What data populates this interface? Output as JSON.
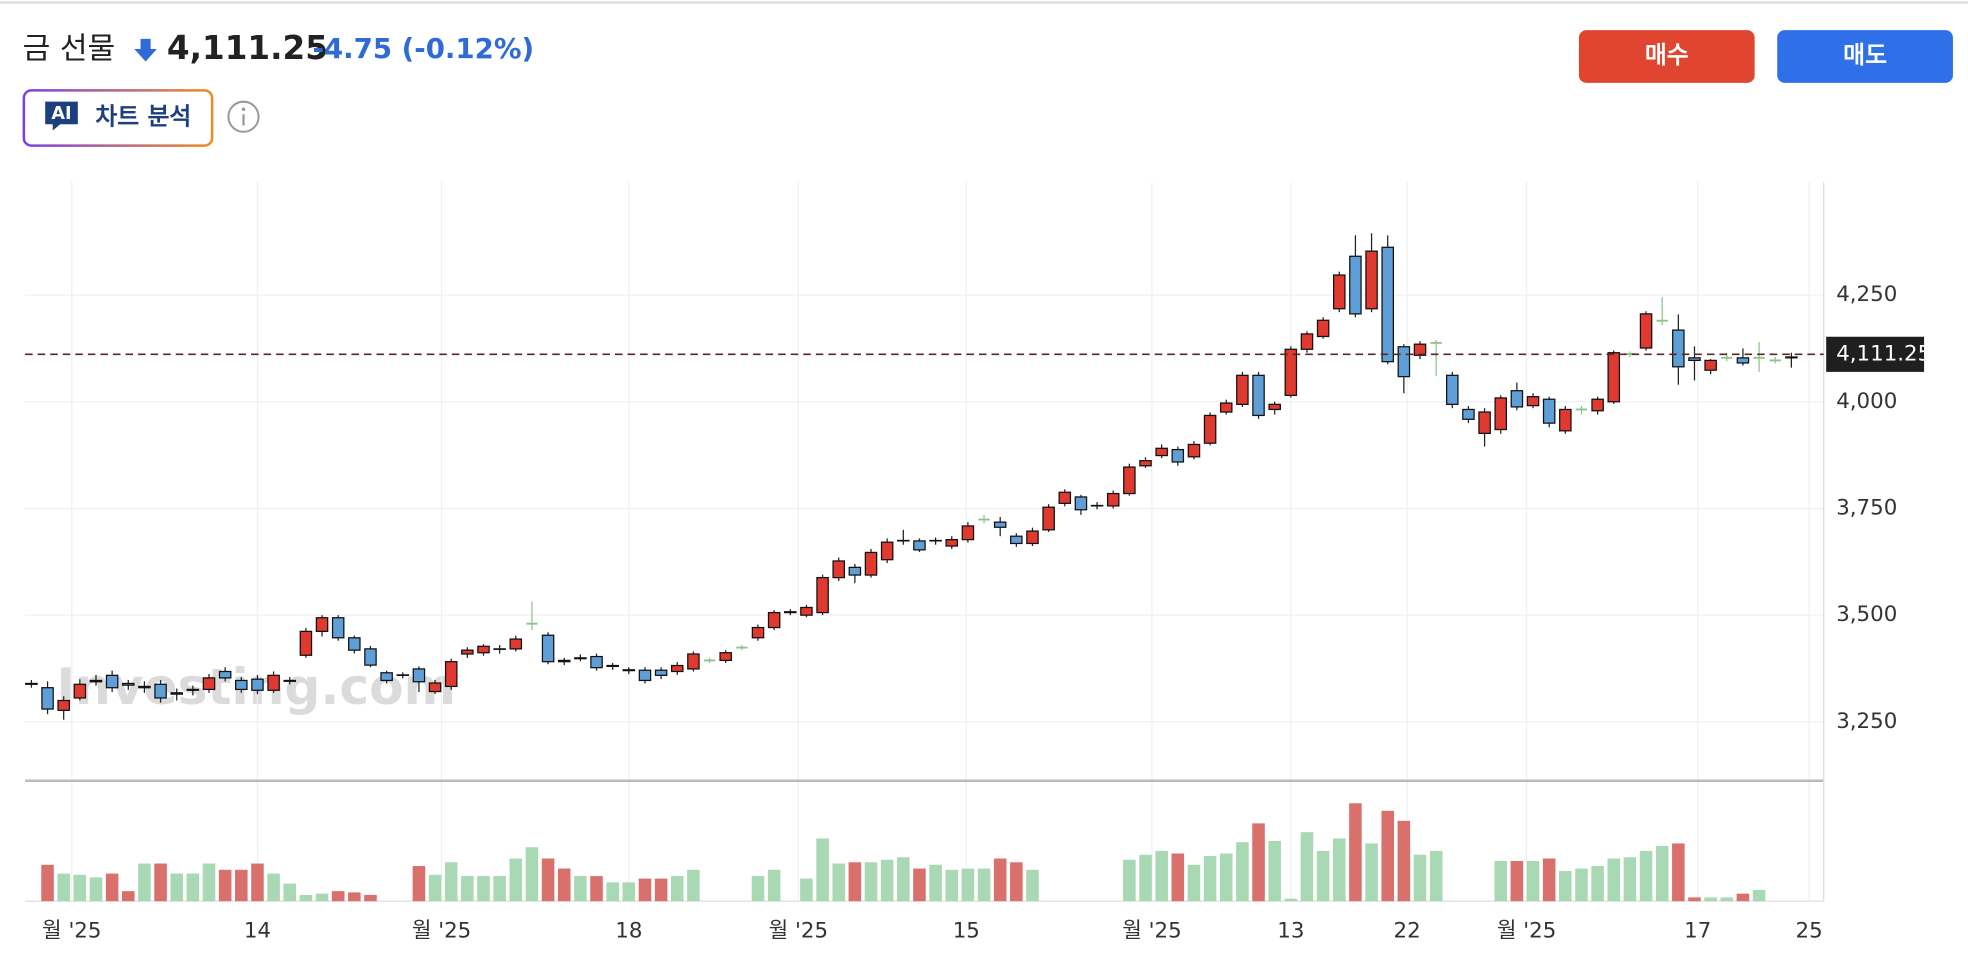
{
  "header": {
    "title": "금 선물",
    "price": "4,111.25",
    "change": "-4.75",
    "change_pct": "(-0.12%)",
    "ai_badge": "AI",
    "ai_label": "차트 분석",
    "buy": "매수",
    "sell": "매도"
  },
  "chart_data": {
    "type": "candlestick",
    "watermark": "Investing.com",
    "colors": {
      "up": "#e0392f",
      "down": "#5e9fd8",
      "flat": "#8cc58c",
      "volume_up": "#a9d8b4",
      "volume_down": "#d9706c"
    },
    "xlim": [
      -0.39,
      111
    ],
    "xticks": [
      {
        "value": 2.5,
        "label": "월 '25"
      },
      14.0,
      {
        "value": 25.4,
        "label": "월 '25"
      },
      {
        "value": 37,
        "label": "18"
      },
      {
        "value": 47.5,
        "label": "월 '25"
      },
      {
        "value": 57.9,
        "label": "15"
      },
      {
        "value": 69.4,
        "label": "월 '25"
      },
      {
        "value": 78,
        "label": "13"
      },
      {
        "value": 85.2,
        "label": "22"
      },
      {
        "value": 92.6,
        "label": "월 '25"
      },
      {
        "value": 103.2,
        "label": "17"
      },
      {
        "value": 110.1,
        "label": "25"
      }
    ],
    "ylim": [
      3118,
      4515
    ],
    "yticks": [
      {
        "value": 3250,
        "label": "3,250"
      },
      {
        "value": 3500,
        "label": "3,500"
      },
      {
        "value": 3750,
        "label": "3,750"
      },
      {
        "value": 4000,
        "label": "4,000"
      },
      {
        "value": 4250,
        "label": "4,250"
      }
    ],
    "last_price": {
      "value": 4111.25,
      "label": "4,111.25"
    },
    "open": [
      3338,
      3330,
      3277,
      3306,
      3344,
      3359,
      3340,
      3330,
      3338,
      3315,
      3324,
      3326,
      3368,
      3347,
      3350,
      3324,
      3345,
      3406,
      3462,
      3494,
      3447,
      3421,
      3365,
      3359,
      3374,
      3321,
      3333,
      3409,
      3412,
      3420,
      3421,
      3480,
      3453,
      3394,
      3398,
      3403,
      3380,
      3370,
      3371,
      3371,
      3368,
      3374,
      3394,
      3394,
      3424,
      3447,
      3471,
      3506,
      3500,
      3506,
      3588,
      3612,
      3594,
      3630,
      3674,
      3674,
      3674,
      3662,
      3677,
      3724,
      3718,
      3685,
      3668,
      3700,
      3762,
      3777,
      3756,
      3756,
      3785,
      3850,
      3874,
      3888,
      3871,
      3903,
      3976,
      3994,
      4062,
      3982,
      4015,
      4123,
      4153,
      4218,
      4341,
      4218,
      4362,
      4129,
      4109,
      4138,
      4062,
      3982,
      3926,
      3935,
      4026,
      3991,
      4006,
      3932,
      3982,
      3979,
      4000,
      4112,
      4126,
      4190,
      4168,
      4103,
      4074,
      4103,
      4103,
      4103,
      4097,
      4103
    ],
    "high": [
      3348,
      3345,
      3310,
      3350,
      3360,
      3370,
      3348,
      3345,
      3348,
      3328,
      3335,
      3362,
      3378,
      3355,
      3360,
      3368,
      3355,
      3470,
      3500,
      3500,
      3452,
      3428,
      3370,
      3366,
      3380,
      3348,
      3398,
      3425,
      3432,
      3430,
      3452,
      3532,
      3460,
      3400,
      3408,
      3410,
      3388,
      3378,
      3378,
      3378,
      3390,
      3415,
      3400,
      3418,
      3430,
      3478,
      3512,
      3514,
      3524,
      3595,
      3635,
      3620,
      3655,
      3680,
      3700,
      3680,
      3682,
      3685,
      3718,
      3735,
      3730,
      3692,
      3705,
      3760,
      3795,
      3782,
      3765,
      3792,
      3855,
      3870,
      3900,
      3895,
      3908,
      3975,
      4005,
      4070,
      4070,
      4000,
      4130,
      4165,
      4198,
      4305,
      4390,
      4395,
      4390,
      4135,
      4142,
      4145,
      4070,
      3990,
      3985,
      4015,
      4045,
      4020,
      4012,
      3990,
      3990,
      4012,
      4120,
      4118,
      4212,
      4245,
      4205,
      4130,
      4100,
      4115,
      4125,
      4140,
      4105,
      4115
    ],
    "low": [
      3330,
      3268,
      3255,
      3300,
      3335,
      3320,
      3325,
      3318,
      3295,
      3300,
      3312,
      3318,
      3345,
      3318,
      3315,
      3318,
      3338,
      3400,
      3450,
      3440,
      3410,
      3378,
      3340,
      3352,
      3320,
      3315,
      3325,
      3400,
      3405,
      3410,
      3415,
      3465,
      3385,
      3383,
      3392,
      3370,
      3372,
      3362,
      3340,
      3350,
      3360,
      3368,
      3388,
      3388,
      3418,
      3440,
      3465,
      3500,
      3495,
      3500,
      3580,
      3575,
      3588,
      3622,
      3665,
      3648,
      3665,
      3655,
      3670,
      3715,
      3685,
      3660,
      3662,
      3695,
      3755,
      3735,
      3748,
      3750,
      3780,
      3845,
      3868,
      3850,
      3865,
      3898,
      3970,
      3988,
      3960,
      3970,
      4010,
      4115,
      4148,
      4210,
      4198,
      4210,
      4088,
      4020,
      4100,
      4060,
      3985,
      3950,
      3895,
      3925,
      3980,
      3985,
      3940,
      3925,
      3970,
      3970,
      3995,
      4105,
      4120,
      4180,
      4040,
      4050,
      4065,
      4095,
      4085,
      4070,
      4090,
      4080
    ],
    "close": [
      3340,
      3280,
      3300,
      3338,
      3347,
      3330,
      3336,
      3333,
      3306,
      3318,
      3326,
      3353,
      3353,
      3326,
      3324,
      3359,
      3347,
      3462,
      3494,
      3447,
      3418,
      3383,
      3347,
      3360,
      3344,
      3341,
      3391,
      3418,
      3427,
      3421,
      3444,
      3480,
      3391,
      3391,
      3400,
      3377,
      3382,
      3372,
      3347,
      3359,
      3382,
      3409,
      3394,
      3412,
      3424,
      3471,
      3506,
      3508,
      3518,
      3588,
      3627,
      3594,
      3647,
      3671,
      3675,
      3653,
      3675,
      3677,
      3709,
      3724,
      3706,
      3668,
      3697,
      3753,
      3788,
      3747,
      3757,
      3785,
      3847,
      3862,
      3891,
      3859,
      3900,
      3968,
      3997,
      4062,
      3968,
      3994,
      4123,
      4159,
      4191,
      4297,
      4206,
      4353,
      4094,
      4059,
      4135,
      4138,
      3994,
      3959,
      3976,
      4009,
      3988,
      4012,
      3950,
      3982,
      3982,
      4006,
      4115,
      4112,
      4206,
      4190,
      4082,
      4097,
      4097,
      4103,
      4091,
      4103,
      4097,
      4105
    ],
    "volume": [
      0,
      29,
      22,
      21,
      19,
      22,
      8,
      30,
      30,
      22,
      22,
      30,
      25,
      25,
      30,
      22,
      14,
      5,
      6,
      8,
      7,
      5,
      0,
      0,
      28,
      21,
      31,
      20,
      20,
      20,
      34,
      43,
      34,
      26,
      20,
      20,
      15,
      15,
      18,
      18,
      20,
      25,
      0,
      0,
      0,
      20,
      25,
      0,
      18,
      50,
      30,
      31,
      31,
      33,
      35,
      26,
      29,
      25,
      26,
      26,
      34,
      31,
      25,
      0,
      0,
      0,
      0,
      0,
      33,
      37,
      40,
      38,
      29,
      36,
      38,
      47,
      62,
      48,
      2,
      55,
      40,
      50,
      78,
      46,
      72,
      64,
      37,
      40,
      0,
      0,
      0,
      32,
      32,
      32,
      34,
      24,
      26,
      28,
      34,
      35,
      40,
      44,
      46,
      3,
      3,
      3,
      6,
      9,
      0,
      0
    ]
  }
}
